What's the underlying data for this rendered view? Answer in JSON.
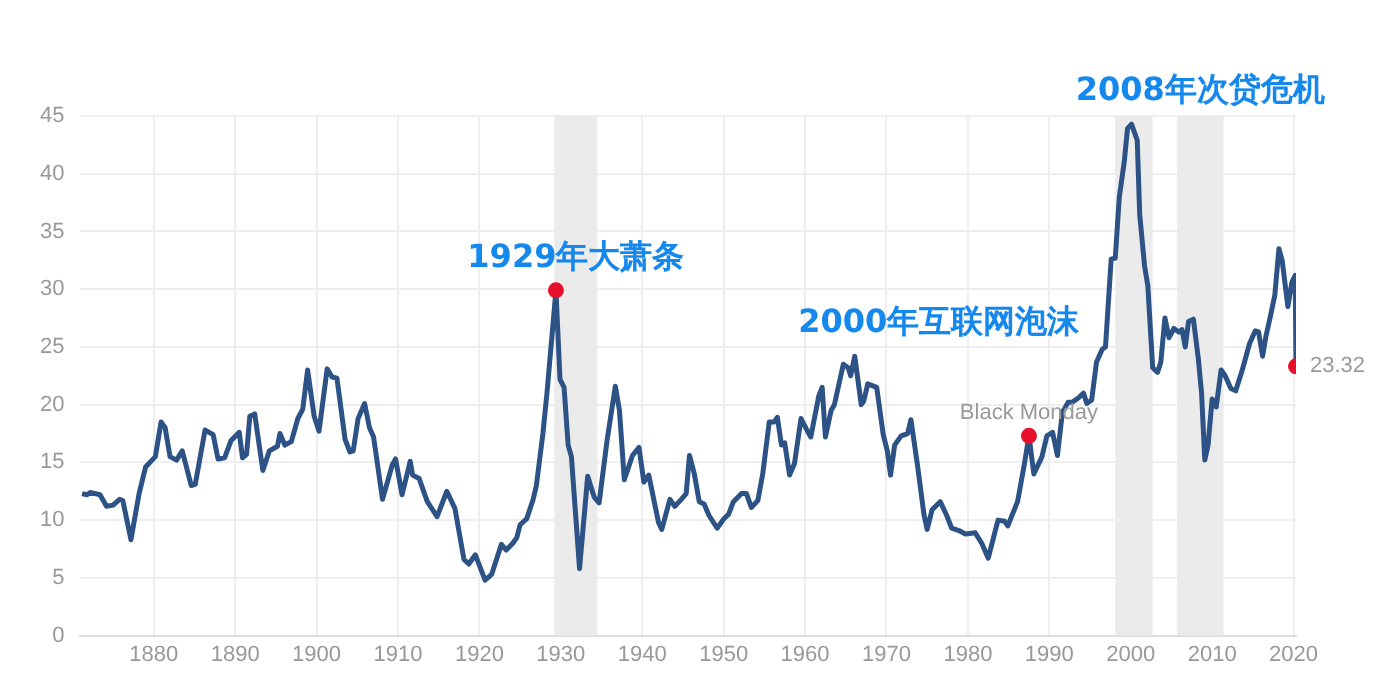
{
  "chart_data": {
    "type": "line",
    "xlim": [
      1871,
      2020.3
    ],
    "ylim": [
      0,
      45
    ],
    "xticks": [
      1880,
      1890,
      1900,
      1910,
      1920,
      1930,
      1940,
      1950,
      1960,
      1970,
      1980,
      1990,
      2000,
      2010,
      2020
    ],
    "yticks": [
      0,
      5,
      10,
      15,
      20,
      25,
      30,
      35,
      40,
      45
    ],
    "grid": true,
    "legend": false,
    "marker": "none",
    "line_style": "solid",
    "series": [
      {
        "color": "#2c5286",
        "x": [
          1871.2,
          1871.8,
          1872.2,
          1873.4,
          1874.2,
          1875,
          1875.8,
          1876.2,
          1877.2,
          1878.2,
          1879,
          1880.2,
          1880.9,
          1881.4,
          1882,
          1882.8,
          1883.5,
          1884.6,
          1885.1,
          1886.3,
          1887.3,
          1887.9,
          1888.7,
          1889.5,
          1890.5,
          1890.9,
          1891.4,
          1891.8,
          1892.4,
          1893.4,
          1894.2,
          1895.2,
          1895.5,
          1896.1,
          1896.9,
          1897.7,
          1898.3,
          1898.9,
          1899.7,
          1900.3,
          1901.3,
          1901.9,
          1902.5,
          1903.5,
          1904.1,
          1904.5,
          1905.1,
          1905.9,
          1906.5,
          1907,
          1908.1,
          1909.3,
          1909.7,
          1910.5,
          1911.5,
          1911.8,
          1912.6,
          1913.6,
          1914.8,
          1916,
          1917,
          1918.1,
          1918.7,
          1919.5,
          1920.7,
          1921.5,
          1922.7,
          1923.3,
          1924.1,
          1924.6,
          1925,
          1925.8,
          1926.6,
          1927,
          1927.8,
          1928.3,
          1929.4,
          1929.9,
          1930.4,
          1930.9,
          1931.3,
          1932.3,
          1933.3,
          1934.1,
          1934.7,
          1935.7,
          1936.7,
          1937.2,
          1937.8,
          1938.8,
          1939.6,
          1940.2,
          1940.8,
          1942,
          1942.4,
          1943.4,
          1944,
          1944.8,
          1945.4,
          1945.8,
          1946.4,
          1947,
          1947.6,
          1948.2,
          1949.2,
          1950,
          1950.6,
          1951.2,
          1952.2,
          1952.8,
          1953.4,
          1954.2,
          1954.8,
          1955.6,
          1956.2,
          1956.6,
          1957.1,
          1957.5,
          1958.1,
          1958.7,
          1959.5,
          1960.3,
          1960.7,
          1961.7,
          1962.1,
          1962.5,
          1963.2,
          1963.6,
          1964.7,
          1965.3,
          1965.6,
          1966.1,
          1966.9,
          1967.2,
          1967.7,
          1968.8,
          1969.6,
          1970.1,
          1970.5,
          1971,
          1971.8,
          1972.6,
          1973,
          1973.8,
          1974.6,
          1975,
          1975.6,
          1976.6,
          1977.4,
          1978,
          1978.9,
          1979.7,
          1980.9,
          1981.7,
          1982.5,
          1983.7,
          1984.5,
          1984.9,
          1986.1,
          1986.9,
          1987.5,
          1988.1,
          1989.1,
          1989.7,
          1990.4,
          1991,
          1991.6,
          1992.3,
          1992.8,
          1993.6,
          1994.2,
          1994.6,
          1995.2,
          1995.8,
          1996.5,
          1996.9,
          1997.6,
          1998.1,
          1998.6,
          1999.2,
          1999.6,
          2000.1,
          2000.8,
          2001.1,
          2001.7,
          2002.1,
          2002.7,
          2003.3,
          2003.7,
          2004.2,
          2004.7,
          2005.3,
          2005.9,
          2006.3,
          2006.7,
          2007.1,
          2007.7,
          2008.3,
          2008.7,
          2009.1,
          2009.5,
          2010,
          2010.5,
          2011.1,
          2011.6,
          2012.3,
          2012.9,
          2013.7,
          2014.6,
          2015.3,
          2015.7,
          2016.2,
          2016.6,
          2017.2,
          2017.7,
          2018.2,
          2018.6,
          2019.3,
          2019.8,
          2020.2,
          2020.3
        ],
        "values": [
          12.3,
          12.2,
          12.4,
          12.2,
          11.2,
          11.3,
          11.8,
          11.7,
          8.3,
          12.3,
          14.6,
          15.5,
          18.5,
          18,
          15.5,
          15.2,
          16,
          13,
          13.1,
          17.8,
          17.4,
          15.3,
          15.4,
          16.9,
          17.6,
          15.4,
          15.7,
          19,
          19.2,
          14.3,
          16,
          16.4,
          17.5,
          16.5,
          16.8,
          18.8,
          19.6,
          23,
          19,
          17.7,
          23.1,
          22.4,
          22.3,
          17,
          15.9,
          16,
          18.8,
          20.1,
          18,
          17.2,
          11.8,
          14.8,
          15.3,
          12.2,
          15.1,
          13.9,
          13.6,
          11.6,
          10.3,
          12.5,
          11,
          6.6,
          6.2,
          7,
          4.8,
          5.3,
          7.9,
          7.4,
          8,
          8.5,
          9.6,
          10.1,
          11.8,
          13,
          17.5,
          21,
          29.9,
          22.2,
          21.5,
          16.5,
          15.5,
          5.8,
          13.8,
          12,
          11.5,
          17,
          21.6,
          19.5,
          13.5,
          15.6,
          16.3,
          13.3,
          13.9,
          9.8,
          9.2,
          11.8,
          11.2,
          11.8,
          12.3,
          15.6,
          14,
          11.6,
          11.4,
          10.4,
          9.3,
          10.1,
          10.5,
          11.6,
          12.3,
          12.3,
          11.1,
          11.7,
          14,
          18.5,
          18.5,
          18.9,
          16.5,
          16.7,
          13.9,
          14.9,
          18.8,
          17.7,
          17.2,
          20.8,
          21.5,
          17.2,
          19.5,
          20,
          23.5,
          23.2,
          22.5,
          24.2,
          20,
          20.3,
          21.8,
          21.5,
          17.4,
          16,
          13.9,
          16.5,
          17.3,
          17.5,
          18.7,
          14.8,
          10.5,
          9.2,
          10.9,
          11.6,
          10.4,
          9.3,
          9.1,
          8.8,
          8.9,
          8,
          6.7,
          10,
          9.9,
          9.5,
          11.6,
          14.7,
          17.3,
          14,
          15.5,
          17.3,
          17.6,
          15.6,
          19.3,
          20.2,
          20.2,
          20.6,
          21,
          20.1,
          20.4,
          23.7,
          24.8,
          25,
          32.6,
          32.7,
          38,
          41,
          43.9,
          44.3,
          42.9,
          36.5,
          32,
          30.3,
          23.2,
          22.8,
          23.7,
          27.5,
          25.8,
          26.6,
          26.3,
          26.5,
          25,
          27.2,
          27.4,
          24,
          21,
          15.2,
          16.5,
          20.5,
          19.8,
          23,
          22.5,
          21.4,
          21.2,
          23,
          25.3,
          26.4,
          26.3,
          24.2,
          25.9,
          27.8,
          29.5,
          33.5,
          32.5,
          28.5,
          30.6,
          31.2,
          23.32
        ]
      },
      {
        "type": "scatter",
        "color": "#e8112d",
        "marker": "circle",
        "x": [
          1929.4,
          1987.5,
          2020.3
        ],
        "values": [
          29.9,
          17.3,
          23.32
        ]
      }
    ],
    "bands": [
      {
        "axis": "x",
        "from": 1929.2,
        "to": 1934.5,
        "label": "1929年大萧条",
        "color": "#ebebeb"
      },
      {
        "axis": "x",
        "from": 1998.1,
        "to": 2002.7,
        "label": "2000年互联网泡沫",
        "color": "#ebebeb"
      },
      {
        "axis": "x",
        "from": 2005.7,
        "to": 2011.4,
        "label": "2008年次贷危机",
        "color": "#ebebeb"
      }
    ],
    "annotations": [
      {
        "text": "Black Monday",
        "x": 1987.5,
        "y": 17.3
      },
      {
        "text": "23.32",
        "x": 2020.3,
        "y": 23.32
      }
    ]
  }
}
